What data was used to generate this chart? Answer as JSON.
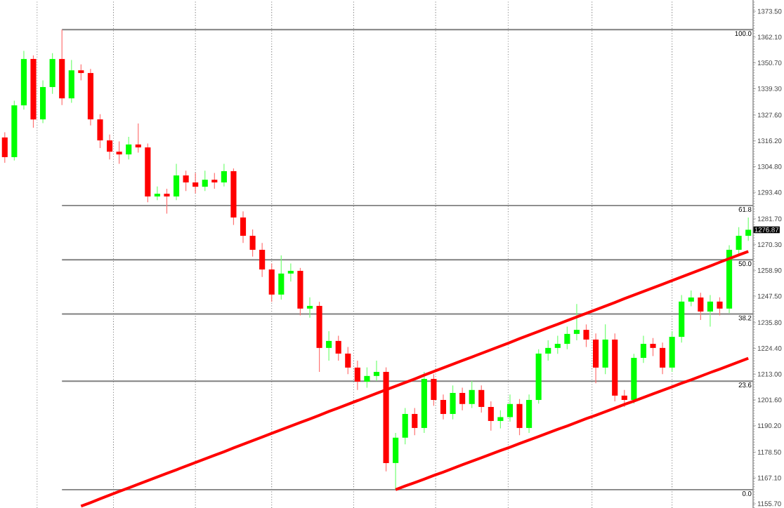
{
  "chart_data": {
    "type": "candlestick",
    "categories": [
      null,
      null,
      null,
      null,
      null,
      null,
      null,
      null,
      null,
      null,
      null,
      null,
      null,
      null,
      null,
      null,
      null,
      null,
      null,
      null,
      null,
      null,
      null,
      null,
      null,
      null,
      null,
      null,
      null,
      null,
      null,
      null,
      null,
      null,
      null,
      null,
      null,
      null,
      null,
      null,
      null,
      null,
      null,
      null,
      null,
      null,
      null,
      null,
      null,
      null,
      null,
      null,
      null,
      null,
      null,
      null,
      null,
      null,
      null,
      null,
      null,
      null,
      null,
      null,
      null,
      null,
      null,
      null,
      null,
      null,
      null,
      null,
      null,
      null,
      null,
      null,
      null,
      null,
      null
    ],
    "ohlc": [
      [
        1317.7,
        1320.0,
        1306.5,
        1309.0
      ],
      [
        1309.0,
        1334.0,
        1307.5,
        1331.9
      ],
      [
        1331.9,
        1356.0,
        1330.0,
        1352.4
      ],
      [
        1352.4,
        1354.0,
        1322.0,
        1325.7
      ],
      [
        1325.7,
        1343.0,
        1324.0,
        1340.0
      ],
      [
        1340.0,
        1355.0,
        1337.0,
        1352.4
      ],
      [
        1352.4,
        1365.4,
        1332.0,
        1335.0
      ],
      [
        1335.0,
        1352.0,
        1333.0,
        1347.4
      ],
      [
        1347.4,
        1350.0,
        1343.0,
        1346.2
      ],
      [
        1346.2,
        1348.0,
        1323.0,
        1325.7
      ],
      [
        1325.7,
        1328.0,
        1313.0,
        1316.4
      ],
      [
        1316.4,
        1319.0,
        1308.0,
        1311.4
      ],
      [
        1311.4,
        1316.0,
        1306.0,
        1310.2
      ],
      [
        1310.2,
        1318.0,
        1308.0,
        1314.6
      ],
      [
        1314.6,
        1323.9,
        1311.0,
        1313.3
      ],
      [
        1313.3,
        1315.0,
        1289.0,
        1291.6
      ],
      [
        1291.6,
        1296.0,
        1290.0,
        1292.8
      ],
      [
        1292.8,
        1295.0,
        1284.0,
        1291.6
      ],
      [
        1291.6,
        1306.0,
        1290.0,
        1300.9
      ],
      [
        1300.9,
        1303.0,
        1294.0,
        1297.8
      ],
      [
        1297.8,
        1302.0,
        1293.0,
        1295.9
      ],
      [
        1295.9,
        1303.0,
        1294.0,
        1299.0
      ],
      [
        1299.0,
        1302.0,
        1295.0,
        1297.8
      ],
      [
        1297.8,
        1306.0,
        1296.0,
        1302.8
      ],
      [
        1302.8,
        1304.0,
        1279.0,
        1282.3
      ],
      [
        1282.3,
        1285.0,
        1271.0,
        1274.2
      ],
      [
        1274.2,
        1277.0,
        1265.0,
        1268.0
      ],
      [
        1268.0,
        1271.0,
        1256.0,
        1259.3
      ],
      [
        1259.3,
        1262.0,
        1245.0,
        1248.2
      ],
      [
        1248.2,
        1265.5,
        1246.0,
        1257.5
      ],
      [
        1257.5,
        1262.0,
        1254.0,
        1258.7
      ],
      [
        1258.7,
        1260.0,
        1239.0,
        1242.0
      ],
      [
        1242.0,
        1247.0,
        1238.0,
        1243.2
      ],
      [
        1243.2,
        1245.0,
        1214.0,
        1224.6
      ],
      [
        1224.6,
        1232.0,
        1219.0,
        1227.7
      ],
      [
        1227.7,
        1230.0,
        1219.0,
        1222.1
      ],
      [
        1222.1,
        1225.0,
        1213.0,
        1215.9
      ],
      [
        1215.9,
        1219.0,
        1206.0,
        1209.7
      ],
      [
        1209.7,
        1216.0,
        1207.0,
        1212.2
      ],
      [
        1212.2,
        1219.0,
        1210.0,
        1214.0
      ],
      [
        1214.0,
        1216.0,
        1170.0,
        1173.7
      ],
      [
        1173.7,
        1187.0,
        1161.9,
        1184.9
      ],
      [
        1184.9,
        1198.0,
        1182.0,
        1195.4
      ],
      [
        1195.4,
        1198.0,
        1186.0,
        1189.2
      ],
      [
        1189.2,
        1214.0,
        1187.0,
        1210.9
      ],
      [
        1210.9,
        1213.0,
        1199.0,
        1201.6
      ],
      [
        1201.6,
        1204.0,
        1193.0,
        1195.4
      ],
      [
        1195.4,
        1208.0,
        1193.0,
        1204.7
      ],
      [
        1204.7,
        1207.0,
        1197.0,
        1199.8
      ],
      [
        1199.8,
        1210.0,
        1198.0,
        1206.0
      ],
      [
        1206.0,
        1208.0,
        1196.0,
        1198.5
      ],
      [
        1198.5,
        1201.0,
        1188.0,
        1192.3
      ],
      [
        1192.3,
        1197.0,
        1189.0,
        1194.0
      ],
      [
        1194.0,
        1204.0,
        1192.0,
        1199.8
      ],
      [
        1199.8,
        1202.0,
        1186.0,
        1189.2
      ],
      [
        1189.2,
        1204.0,
        1187.0,
        1201.6
      ],
      [
        1201.6,
        1224.0,
        1200.0,
        1222.1
      ],
      [
        1222.1,
        1228.0,
        1219.0,
        1224.6
      ],
      [
        1224.6,
        1230.0,
        1222.0,
        1226.4
      ],
      [
        1226.4,
        1234.0,
        1224.0,
        1230.8
      ],
      [
        1230.8,
        1244.0,
        1228.0,
        1232.6
      ],
      [
        1232.6,
        1235.0,
        1225.0,
        1228.3
      ],
      [
        1228.3,
        1231.0,
        1209.0,
        1215.9
      ],
      [
        1215.9,
        1235.0,
        1213.0,
        1228.3
      ],
      [
        1228.3,
        1231.0,
        1201.0,
        1203.5
      ],
      [
        1203.5,
        1206.0,
        1198.5,
        1201.6
      ],
      [
        1201.6,
        1222.0,
        1200.0,
        1220.2
      ],
      [
        1220.2,
        1230.0,
        1218.0,
        1226.4
      ],
      [
        1226.4,
        1229.0,
        1221.0,
        1224.6
      ],
      [
        1224.6,
        1227.0,
        1213.0,
        1215.9
      ],
      [
        1215.9,
        1232.0,
        1214.0,
        1229.5
      ],
      [
        1229.5,
        1248.0,
        1227.0,
        1245.1
      ],
      [
        1245.1,
        1250.0,
        1243.0,
        1246.9
      ],
      [
        1246.9,
        1249.0,
        1237.0,
        1240.7
      ],
      [
        1240.7,
        1248.0,
        1234.0,
        1245.1
      ],
      [
        1245.1,
        1247.0,
        1239.0,
        1242.0
      ],
      [
        1242.0,
        1270.0,
        1240.0,
        1268.0
      ],
      [
        1268.0,
        1278.0,
        1266.0,
        1274.2
      ],
      [
        1274.2,
        1282.3,
        1272.0,
        1276.87
      ]
    ],
    "series": [
      {
        "type": "line",
        "color": "#ff0000",
        "values": [
          null,
          null,
          null,
          null,
          null,
          null,
          null,
          null,
          1154.6,
          1156.2,
          1157.9,
          1159.5,
          1161.1,
          1162.7,
          1164.3,
          1165.9,
          1167.5,
          1169.1,
          1170.7,
          1172.3,
          1173.9,
          1175.5,
          1177.1,
          1178.7,
          1180.4,
          1182.0,
          1183.6,
          1185.2,
          1186.8,
          1188.4,
          1190.0,
          1191.6,
          1193.2,
          1194.8,
          1196.5,
          1198.1,
          1199.7,
          1201.3,
          1202.9,
          1204.5,
          1206.1,
          1207.7,
          1209.3,
          1210.9,
          1212.6,
          1214.2,
          1215.8,
          1217.4,
          1219.0,
          1220.6,
          1222.2,
          1223.8,
          1225.4,
          1227.0,
          1228.7,
          1230.3,
          1231.9,
          1233.5,
          1235.1,
          1236.7,
          1238.3,
          1239.9,
          1241.5,
          1243.1,
          1244.7,
          1246.4,
          1248.0,
          1249.6,
          1251.2,
          1252.8,
          1254.4,
          1256.0,
          1257.6,
          1259.2,
          1260.8,
          1262.5,
          1264.1,
          1265.7,
          1267.3
        ]
      },
      {
        "type": "line",
        "color": "#ff0000",
        "values": [
          null,
          null,
          null,
          null,
          null,
          null,
          null,
          null,
          null,
          null,
          null,
          null,
          null,
          null,
          null,
          null,
          null,
          null,
          null,
          null,
          null,
          null,
          null,
          null,
          null,
          null,
          null,
          null,
          null,
          null,
          null,
          null,
          null,
          null,
          null,
          null,
          null,
          null,
          null,
          null,
          null,
          1161.9,
          1163.5,
          1165.0,
          1166.6,
          1168.2,
          1169.7,
          1171.3,
          1172.9,
          1174.5,
          1176.0,
          1177.6,
          1179.2,
          1180.7,
          1182.3,
          1183.9,
          1185.4,
          1187.0,
          1188.6,
          1190.1,
          1191.7,
          1193.3,
          1194.8,
          1196.4,
          1198.0,
          1199.6,
          1201.1,
          1202.7,
          1204.3,
          1205.8,
          1207.4,
          1209.0,
          1210.5,
          1212.1,
          1213.7,
          1215.2,
          1216.8,
          1218.4,
          1220.0
        ]
      }
    ],
    "grid": "x",
    "ylim": [
      1153.8,
      1378.5
    ],
    "yticks": [
      {
        "value": 1373.5,
        "label": "1373.50"
      },
      {
        "value": 1362.1,
        "label": "1362.10"
      },
      {
        "value": 1350.7,
        "label": "1350.70"
      },
      {
        "value": 1339.3,
        "label": "1339.30"
      },
      {
        "value": 1327.6,
        "label": "1327.60"
      },
      {
        "value": 1316.2,
        "label": "1316.20"
      },
      {
        "value": 1304.8,
        "label": "1304.80"
      },
      {
        "value": 1293.4,
        "label": "1293.40"
      },
      {
        "value": 1281.7,
        "label": "1281.70"
      },
      {
        "value": 1270.3,
        "label": "1270.30"
      },
      {
        "value": 1258.9,
        "label": "1258.90"
      },
      {
        "value": 1247.5,
        "label": "1247.50"
      },
      {
        "value": 1235.8,
        "label": "1235.80"
      },
      {
        "value": 1224.4,
        "label": "1224.40"
      },
      {
        "value": 1213.0,
        "label": "1213.00"
      },
      {
        "value": 1201.6,
        "label": "1201.60"
      },
      {
        "value": 1190.2,
        "label": "1190.20"
      },
      {
        "value": 1178.5,
        "label": "1178.50"
      },
      {
        "value": 1167.1,
        "label": "1167.10"
      },
      {
        "value": 1155.7,
        "label": "1155.70"
      }
    ],
    "ref_lines": [
      {
        "axis": "y",
        "value": 1365.4,
        "color": "#808080"
      },
      {
        "axis": "y",
        "value": 1287.6,
        "color": "#808080"
      },
      {
        "axis": "y",
        "value": 1263.6,
        "color": "#808080"
      },
      {
        "axis": "y",
        "value": 1239.6,
        "color": "#808080"
      },
      {
        "axis": "y",
        "value": 1209.9,
        "color": "#808080"
      },
      {
        "axis": "y",
        "value": 1161.9,
        "color": "#808080"
      }
    ],
    "annotations": [
      {
        "text": "100.0",
        "y": 1365.4
      },
      {
        "text": "61.8",
        "y": 1287.6
      },
      {
        "text": "50.0",
        "y": 1263.6
      },
      {
        "text": "38.2",
        "y": 1239.6
      },
      {
        "text": "23.6",
        "y": 1209.9
      },
      {
        "text": "0.0",
        "y": 1161.9
      },
      "1276.87"
    ]
  }
}
